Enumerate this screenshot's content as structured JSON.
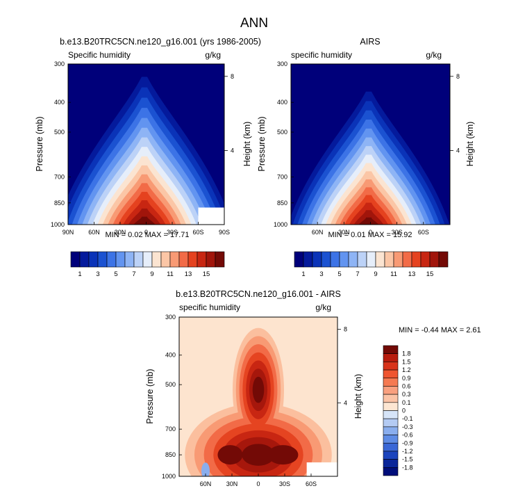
{
  "figure": {
    "title": "ANN"
  },
  "chart_data": [
    {
      "type": "heatmap",
      "title": "b.e13.B20TRC5CN.ne120_g16.001 (yrs 1986-2005)",
      "left_label": "Specific humidity",
      "right_label": "g/kg",
      "ylabel": "Pressure (mb)",
      "y2label": "Height (km)",
      "x_ticks": [
        "90N",
        "60N",
        "30N",
        "0",
        "30S",
        "60S",
        "90S"
      ],
      "x_tick_values": [
        90,
        60,
        30,
        0,
        -30,
        -60,
        -90
      ],
      "xlim": [
        90,
        -90
      ],
      "y_ticks": [
        "300",
        "400",
        "500",
        "700",
        "850",
        "1000"
      ],
      "y_tick_values": [
        300,
        400,
        500,
        700,
        850,
        1000
      ],
      "ylim": [
        1000,
        300
      ],
      "y_scale": "log",
      "y2_ticks": [
        "8",
        "4"
      ],
      "y2_tick_values": [
        8,
        4
      ],
      "min_label": "MIN =",
      "min_value": "0.02",
      "max_label": "MAX =",
      "max_value": "17.71",
      "peak": {
        "lat": 2,
        "value": 17.7
      },
      "colorbar": {
        "orientation": "horizontal",
        "labels": [
          "1",
          "3",
          "5",
          "7",
          "9",
          "11",
          "13",
          "15"
        ],
        "colors": [
          "#00007a",
          "#041a9c",
          "#0a33b8",
          "#1b52d1",
          "#3c73e6",
          "#6294f0",
          "#8eb4f5",
          "#bcd2f7",
          "#e6eefa",
          "#fbe4d1",
          "#fbc6a6",
          "#f89a74",
          "#f26b47",
          "#e5421f",
          "#c82612",
          "#a1150b",
          "#730a06"
        ]
      }
    },
    {
      "type": "heatmap",
      "title": "AIRS",
      "left_label": "specific humidity",
      "right_label": "g/kg",
      "ylabel": "Pressure (mb)",
      "y2label": "Height (km)",
      "x_ticks": [
        "60N",
        "30N",
        "0",
        "30S",
        "60S"
      ],
      "x_tick_values": [
        60,
        30,
        0,
        -30,
        -60
      ],
      "xlim": [
        90,
        -90
      ],
      "y_ticks": [
        "300",
        "400",
        "500",
        "700",
        "850",
        "1000"
      ],
      "y_tick_values": [
        300,
        400,
        500,
        700,
        850,
        1000
      ],
      "ylim": [
        1000,
        300
      ],
      "y_scale": "log",
      "y2_ticks": [
        "8",
        "4"
      ],
      "y2_tick_values": [
        8,
        4
      ],
      "min_label": "MIN =",
      "min_value": "0.01",
      "max_label": "MAX =",
      "max_value": "15.92",
      "peak": {
        "lat": 2,
        "value": 15.9
      },
      "colorbar": {
        "orientation": "horizontal",
        "labels": [
          "1",
          "3",
          "5",
          "7",
          "9",
          "11",
          "13",
          "15"
        ],
        "colors": [
          "#00007a",
          "#041a9c",
          "#0a33b8",
          "#1b52d1",
          "#3c73e6",
          "#6294f0",
          "#8eb4f5",
          "#bcd2f7",
          "#e6eefa",
          "#fbe4d1",
          "#fbc6a6",
          "#f89a74",
          "#f26b47",
          "#e5421f",
          "#c82612",
          "#a1150b",
          "#730a06"
        ]
      }
    },
    {
      "type": "heatmap",
      "title": "b.e13.B20TRC5CN.ne120_g16.001 - AIRS",
      "left_label": "specific humidity",
      "right_label": "g/kg",
      "ylabel": "Pressure (mb)",
      "y2label": "Height (km)",
      "x_ticks": [
        "60N",
        "30N",
        "0",
        "30S",
        "60S"
      ],
      "x_tick_values": [
        60,
        30,
        0,
        -30,
        -60
      ],
      "xlim": [
        90,
        -90
      ],
      "y_ticks": [
        "300",
        "400",
        "500",
        "700",
        "850",
        "1000"
      ],
      "y_tick_values": [
        300,
        400,
        500,
        700,
        850,
        1000
      ],
      "ylim": [
        1000,
        300
      ],
      "y_scale": "log",
      "y2_ticks": [
        "8",
        "4"
      ],
      "y2_tick_values": [
        8,
        4
      ],
      "min_label": "MIN =",
      "min_value": "-0.44",
      "max_label": "MAX =",
      "max_value": "2.61",
      "colorbar": {
        "orientation": "vertical",
        "labels": [
          "1.8",
          "1.5",
          "1.2",
          "0.9",
          "0.6",
          "0.3",
          "0.1",
          "0",
          "-0.1",
          "-0.3",
          "-0.6",
          "-0.9",
          "-1.2",
          "-1.5",
          "-1.8"
        ],
        "colors": [
          "#730a06",
          "#b81c0e",
          "#d8331a",
          "#ef5530",
          "#f57a52",
          "#f9a07f",
          "#fbc3a6",
          "#fde6d2",
          "#d6e4f8",
          "#b4cbf3",
          "#8aaeee",
          "#5f8ce5",
          "#3a67d6",
          "#1b44bd",
          "#0a2699",
          "#000e7a"
        ]
      }
    }
  ]
}
